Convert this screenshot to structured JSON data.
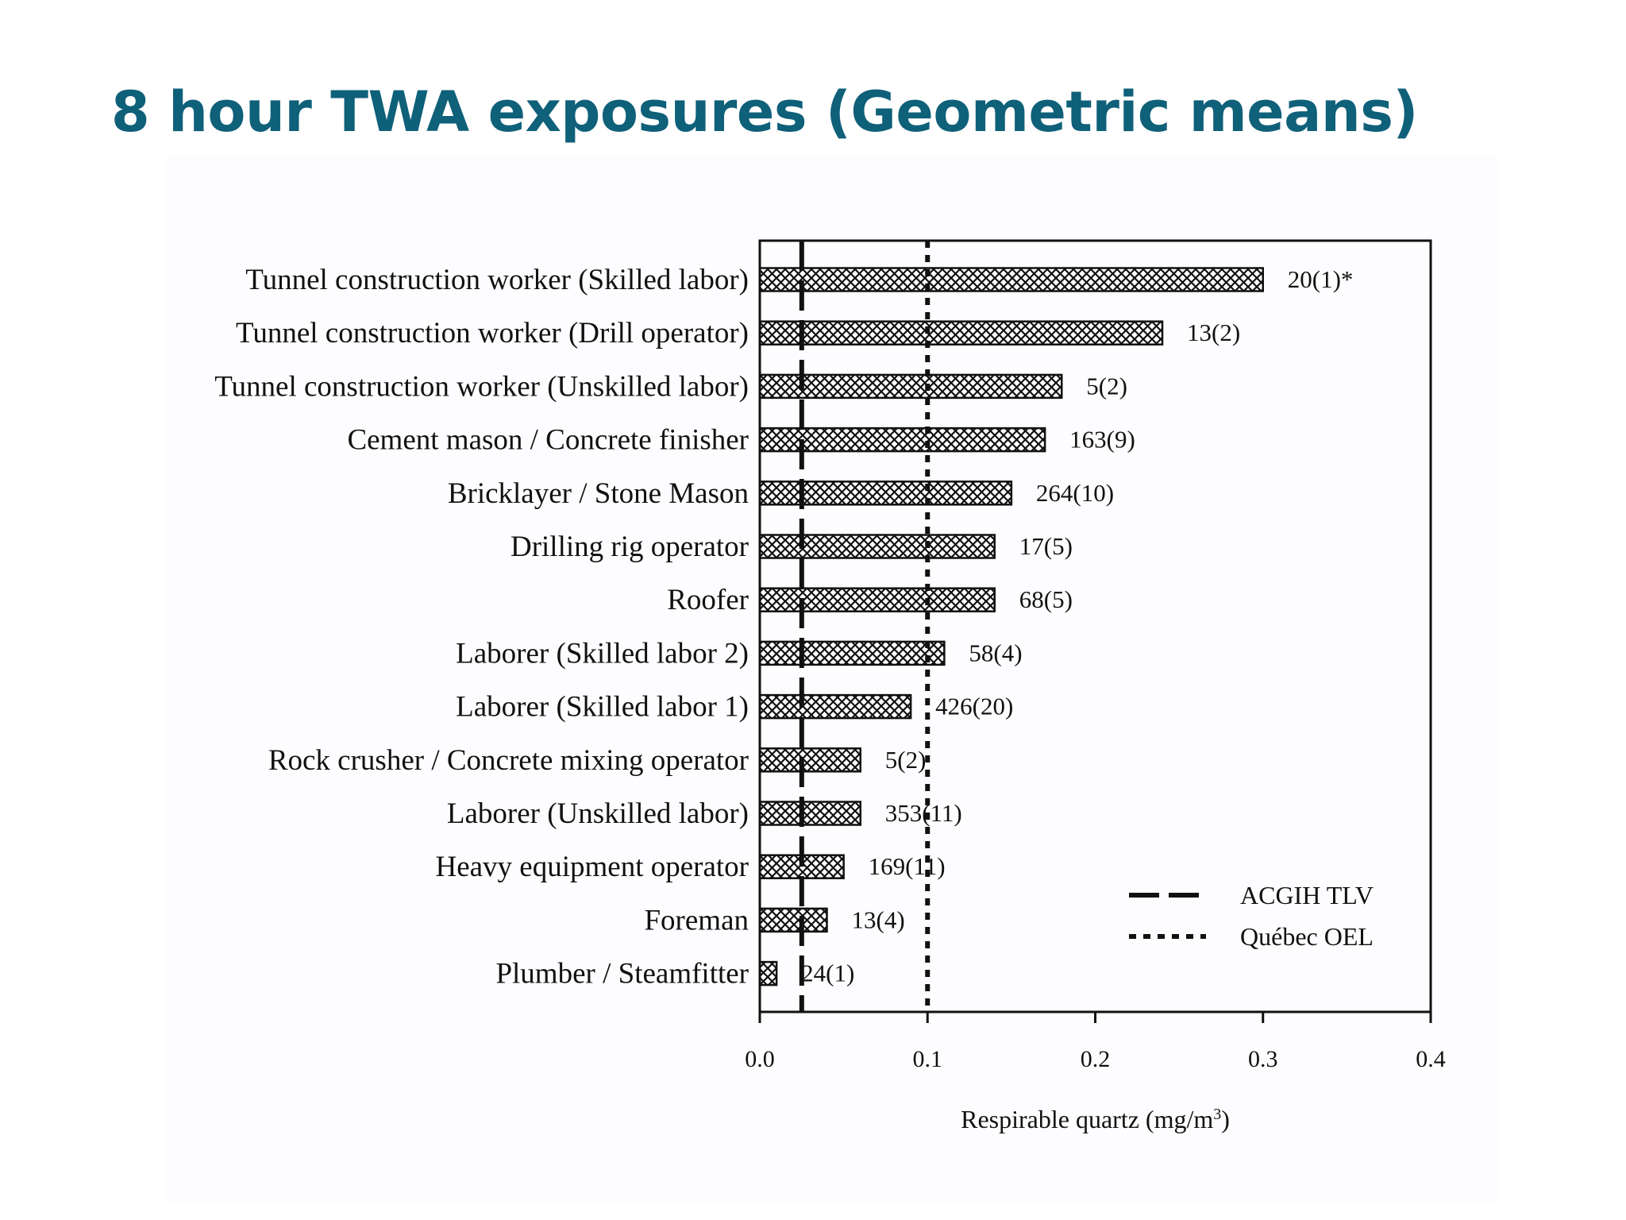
{
  "slide": {
    "title": "8 hour TWA exposures (Geometric means)"
  },
  "chart_data": {
    "type": "bar",
    "orientation": "horizontal",
    "bar_fill": "crosshatch",
    "categories": [
      "Tunnel construction worker (Skilled labor)",
      "Tunnel construction worker (Drill operator)",
      "Tunnel construction worker (Unskilled labor)",
      "Cement mason / Concrete finisher",
      "Bricklayer / Stone Mason",
      "Drilling rig operator",
      "Roofer",
      "Laborer (Skilled labor 2)",
      "Laborer (Skilled labor 1)",
      "Rock crusher / Concrete mixing operator",
      "Laborer (Unskilled labor)",
      "Heavy equipment operator",
      "Foreman",
      "Plumber / Steamfitter"
    ],
    "values": [
      0.3,
      0.24,
      0.18,
      0.17,
      0.15,
      0.14,
      0.14,
      0.11,
      0.09,
      0.06,
      0.06,
      0.05,
      0.04,
      0.01
    ],
    "bar_labels": [
      "20(1)*",
      "13(2)",
      "5(2)",
      "163(9)",
      "264(10)",
      "17(5)",
      "68(5)",
      "58(4)",
      "426(20)",
      "5(2)",
      "353(11)",
      "169(11)",
      "13(4)",
      "24(1)"
    ],
    "reference_lines": [
      {
        "name": "ACGIH TLV",
        "value": 0.025,
        "style": "dashed"
      },
      {
        "name": "Québec OEL",
        "value": 0.1,
        "style": "dotted"
      }
    ],
    "xlabel": "Respirable quartz (mg/m",
    "xlabel_superscript": "3",
    "xlabel_suffix": ")",
    "xlim": [
      0.0,
      0.4
    ],
    "xticks": [
      0.0,
      0.1,
      0.2,
      0.3,
      0.4
    ],
    "xtick_labels": [
      "0.0",
      "0.1",
      "0.2",
      "0.3",
      "0.4"
    ],
    "legend_position": "bottom-right",
    "grid": false
  }
}
